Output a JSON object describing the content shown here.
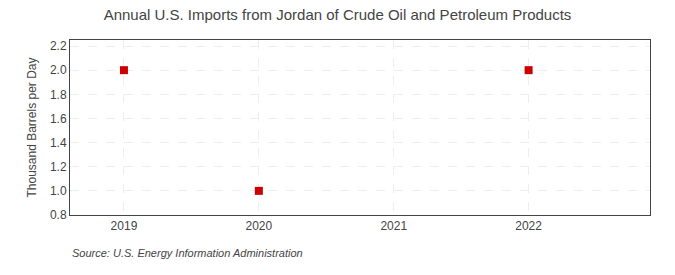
{
  "chart_data": {
    "type": "scatter",
    "title": "Annual U.S. Imports from Jordan of Crude Oil and Petroleum Products",
    "y_label": "Thousand Barrels per Day",
    "annotations": [
      "Source: U.S. Energy Information Administration"
    ],
    "x": [
      2019,
      2020,
      2022
    ],
    "values": [
      2.0,
      1.0,
      2.0
    ],
    "color": "#cc0000",
    "marker": "square",
    "xlim": [
      2018.6,
      2022.9
    ],
    "xticks": [
      2019,
      2020,
      2021,
      2022
    ],
    "ylim": [
      0.8,
      2.25
    ],
    "yticks": [
      0.8,
      {
        "value": 1.0,
        "label": "1.0"
      },
      1.2,
      1.4,
      1.6,
      1.8,
      {
        "value": 2.0,
        "label": "2.0"
      },
      2.2
    ],
    "grid": true
  }
}
